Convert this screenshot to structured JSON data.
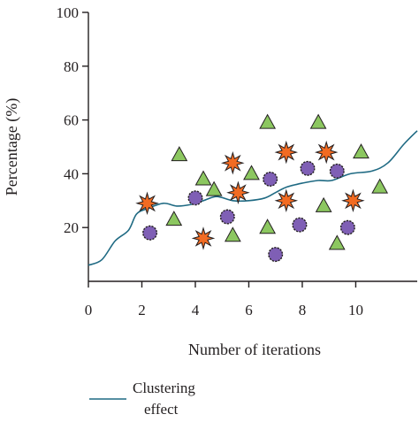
{
  "chart_data": {
    "type": "scatter",
    "title": "",
    "xlabel": "Number of iterations",
    "ylabel": "Percentage (%)",
    "xlim": [
      0,
      12.3
    ],
    "ylim": [
      0,
      100
    ],
    "x_ticks": [
      0,
      2,
      4,
      6,
      8,
      10
    ],
    "y_ticks": [
      20,
      40,
      60,
      80,
      100
    ],
    "grid": false,
    "legend": [
      {
        "label": "Clustering effect",
        "marker": "line"
      }
    ],
    "legend_position": "bottom-left",
    "colors": {
      "line": "#1f6a83",
      "triangle": "#8cc760",
      "circle": "#7f5fb5",
      "star": "#f26b22",
      "outline": "#231f20"
    },
    "series": [
      {
        "name": "Clustering effect",
        "kind": "line",
        "points": [
          [
            0,
            6
          ],
          [
            0.5,
            8
          ],
          [
            1.0,
            15
          ],
          [
            1.5,
            19
          ],
          [
            1.8,
            25
          ],
          [
            2.2,
            27
          ],
          [
            2.8,
            29
          ],
          [
            3.3,
            28
          ],
          [
            3.8,
            28.5
          ],
          [
            4.3,
            30
          ],
          [
            4.8,
            31.5
          ],
          [
            5.4,
            30
          ],
          [
            6.0,
            30
          ],
          [
            6.6,
            31
          ],
          [
            7.0,
            33
          ],
          [
            7.4,
            35
          ],
          [
            8.0,
            36.5
          ],
          [
            8.6,
            37.5
          ],
          [
            9.1,
            37.5
          ],
          [
            9.8,
            40
          ],
          [
            10.6,
            41
          ],
          [
            11.2,
            44
          ],
          [
            11.8,
            51
          ],
          [
            12.3,
            56
          ]
        ]
      },
      {
        "kind": "triangle",
        "points": [
          [
            3.4,
            47
          ],
          [
            3.2,
            23
          ],
          [
            4.3,
            38
          ],
          [
            4.7,
            34
          ],
          [
            5.4,
            17
          ],
          [
            6.1,
            40
          ],
          [
            6.7,
            59
          ],
          [
            6.7,
            20
          ],
          [
            8.6,
            59
          ],
          [
            8.8,
            28
          ],
          [
            9.3,
            14
          ],
          [
            10.2,
            48
          ],
          [
            10.9,
            35
          ]
        ]
      },
      {
        "kind": "circle",
        "points": [
          [
            2.3,
            18
          ],
          [
            4.0,
            31
          ],
          [
            5.2,
            24
          ],
          [
            6.8,
            38
          ],
          [
            7.0,
            10
          ],
          [
            7.9,
            21
          ],
          [
            8.2,
            42
          ],
          [
            9.3,
            41
          ],
          [
            9.7,
            20
          ]
        ]
      },
      {
        "kind": "star",
        "points": [
          [
            2.2,
            29
          ],
          [
            4.3,
            16
          ],
          [
            5.4,
            44
          ],
          [
            5.6,
            33
          ],
          [
            7.4,
            48
          ],
          [
            7.4,
            30
          ],
          [
            8.9,
            48
          ],
          [
            9.9,
            30
          ]
        ]
      }
    ]
  },
  "legend_label_line1": "Clustering",
  "legend_label_line2": "effect"
}
